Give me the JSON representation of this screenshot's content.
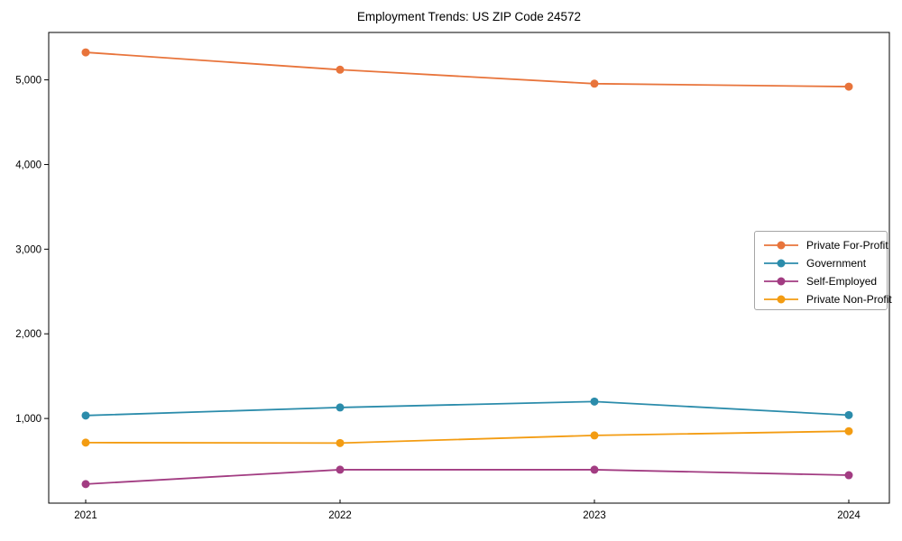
{
  "chart_data": {
    "type": "line",
    "title": "Employment Trends: US ZIP Code 24572",
    "categories": [
      "2021",
      "2022",
      "2023",
      "2024"
    ],
    "series": [
      {
        "name": "Private For-Profit",
        "color": "#e8743b",
        "values": [
          5325,
          5120,
          4955,
          4920
        ]
      },
      {
        "name": "Government",
        "color": "#2b8cab",
        "values": [
          1035,
          1130,
          1200,
          1040
        ]
      },
      {
        "name": "Self-Employed",
        "color": "#a23c82",
        "values": [
          225,
          395,
          395,
          330
        ]
      },
      {
        "name": "Private Non-Profit",
        "color": "#f39c12",
        "values": [
          715,
          710,
          800,
          850
        ]
      }
    ],
    "xlabel": "",
    "ylabel": "",
    "ylim": [
      0,
      5560
    ],
    "y_ticks": [
      {
        "value": 1000,
        "label": "1,000"
      },
      {
        "value": 2000,
        "label": "2,000"
      },
      {
        "value": 3000,
        "label": "3,000"
      },
      {
        "value": 4000,
        "label": "4,000"
      },
      {
        "value": 5000,
        "label": "5,000"
      }
    ],
    "legend_position": "center-right",
    "grid": false,
    "frame_color": "#000000",
    "background_color": "#ffffff"
  }
}
